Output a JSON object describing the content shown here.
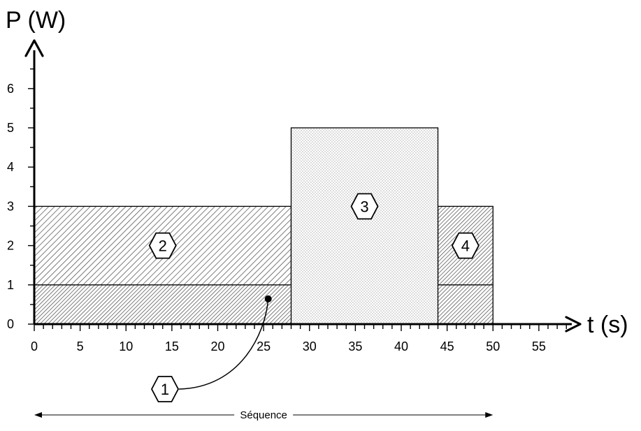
{
  "chart_data": {
    "type": "area",
    "title": "",
    "xlabel": "t (s)",
    "ylabel": "P (W)",
    "xlim": [
      0,
      55
    ],
    "ylim": [
      0,
      6
    ],
    "x_ticks": [
      0,
      5,
      10,
      15,
      20,
      25,
      30,
      35,
      40,
      45,
      50,
      55
    ],
    "y_ticks": [
      0,
      1,
      2,
      3,
      4,
      5,
      6
    ],
    "grid": false,
    "segments": [
      {
        "label": "1",
        "x_start": 0,
        "x_end": 50,
        "y_bottom": 0,
        "y_top": 1,
        "pattern": "hatch-dense",
        "label_x": 25.5,
        "label_y": 0.5
      },
      {
        "label": "2",
        "x_start": 0,
        "x_end": 28,
        "y_bottom": 1,
        "y_top": 3,
        "pattern": "hatch",
        "label_x": 14,
        "label_y": 2
      },
      {
        "label": "3",
        "x_start": 28,
        "x_end": 44,
        "y_bottom": 0,
        "y_top": 5,
        "pattern": "dots",
        "label_x": 36,
        "label_y": 3
      },
      {
        "label": "4",
        "x_start": 44,
        "x_end": 50,
        "y_bottom": 1,
        "y_top": 3,
        "pattern": "hatch-dense",
        "label_x": 47,
        "label_y": 2
      }
    ],
    "sequence": {
      "label": "Séquence",
      "x_start": 0,
      "x_end": 50
    },
    "colors": {
      "axis": "#000000",
      "hatch": "#555555",
      "zone_fill": "#ffffff"
    }
  }
}
